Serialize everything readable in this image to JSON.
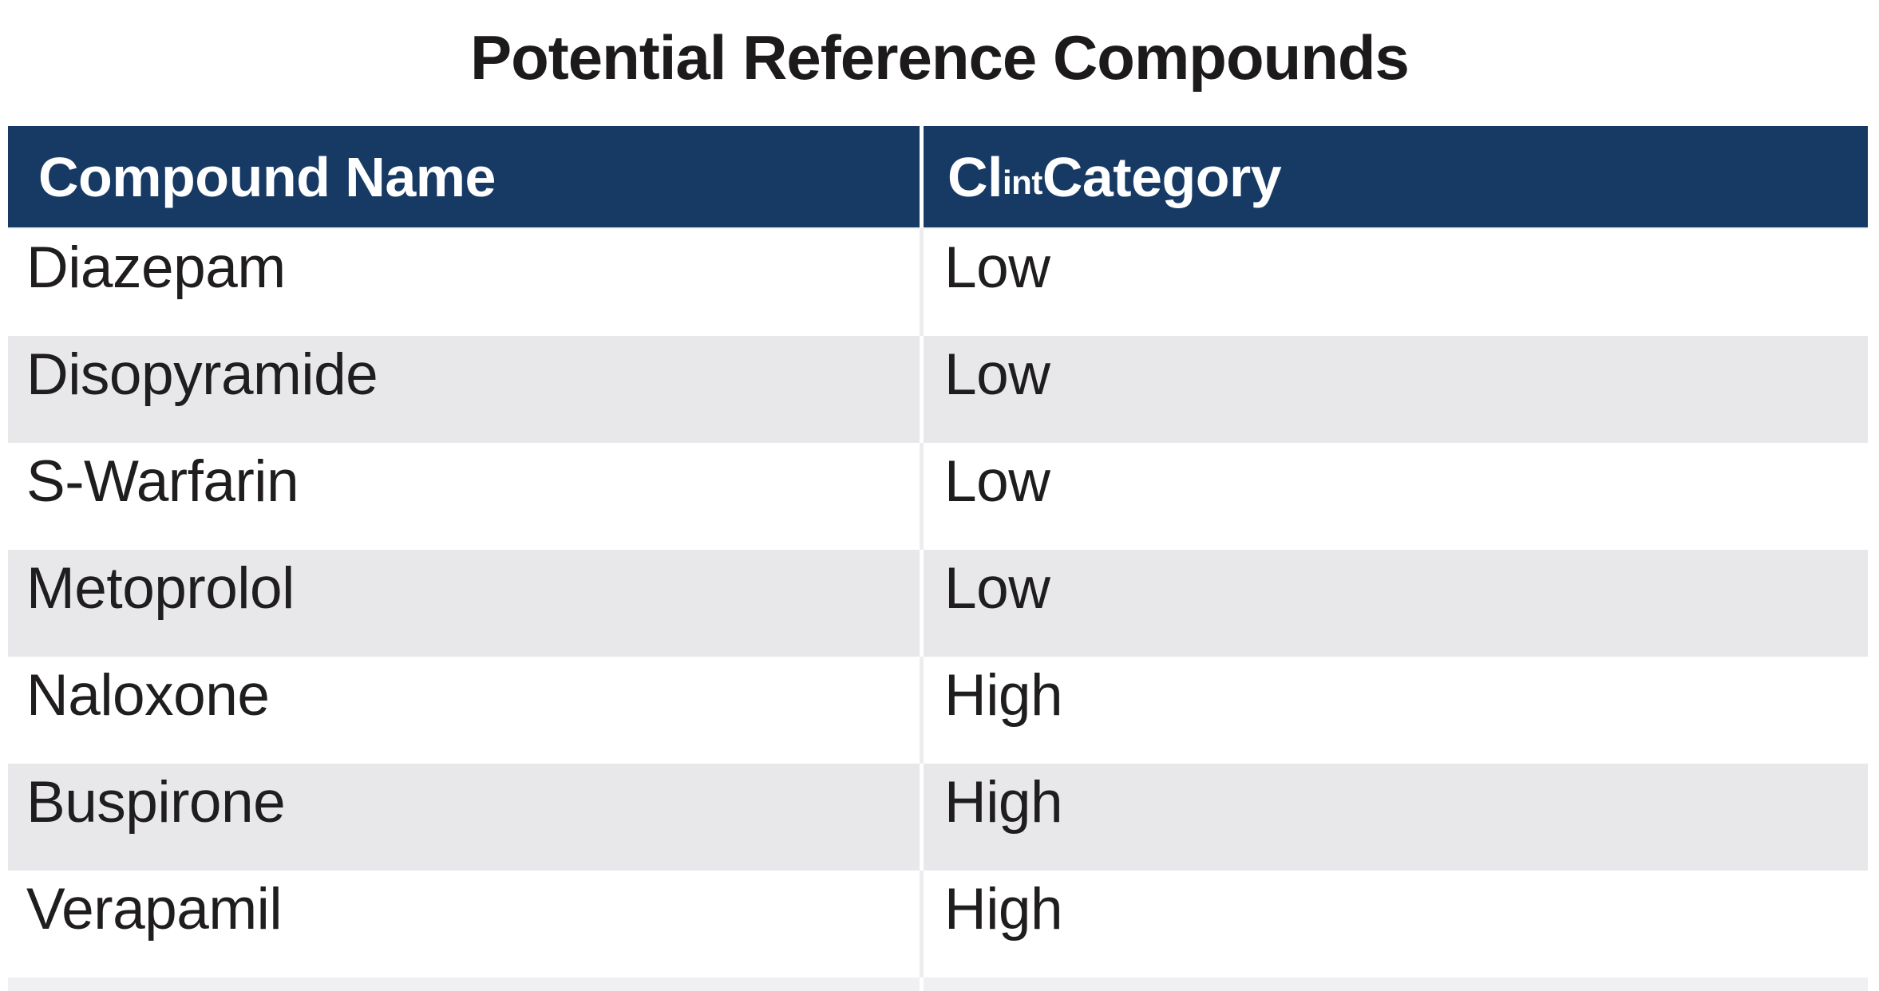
{
  "title": "Potential Reference Compounds",
  "table": {
    "columns": {
      "compound_name": "Compound Name",
      "clint_main": "Cl",
      "clint_sub": "int",
      "clint_rest": " Category"
    },
    "rows": [
      {
        "compound_name": "Diazepam",
        "clint_category": "Low"
      },
      {
        "compound_name": "Disopyramide",
        "clint_category": "Low"
      },
      {
        "compound_name": "S-Warfarin",
        "clint_category": "Low"
      },
      {
        "compound_name": "Metoprolol",
        "clint_category": "Low"
      },
      {
        "compound_name": "Naloxone",
        "clint_category": "High"
      },
      {
        "compound_name": "Buspirone",
        "clint_category": "High"
      },
      {
        "compound_name": "Verapamil",
        "clint_category": "High"
      }
    ]
  },
  "colors": {
    "header_background": "#173a64",
    "header_text": "#ffffff",
    "row_band_gray": "#e8e8eb",
    "row_white": "#ffffff",
    "body_text": "#201d1e",
    "title_text": "#1c1a1b"
  }
}
